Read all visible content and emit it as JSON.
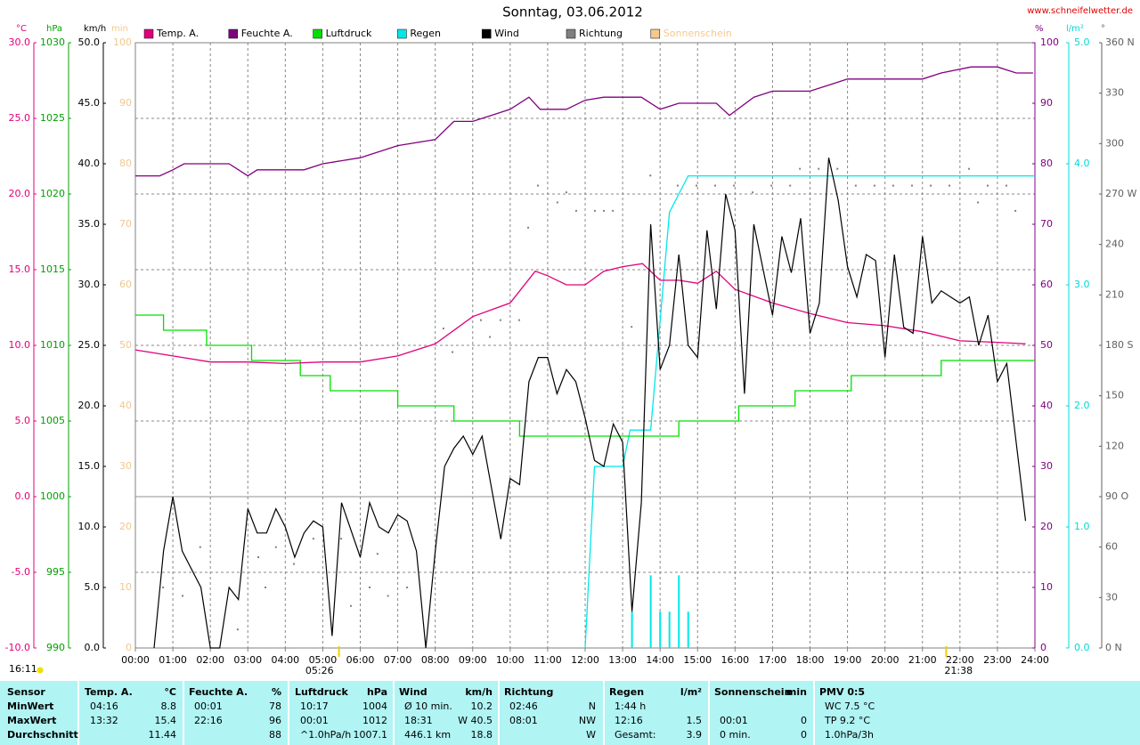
{
  "chart_data": {
    "type": "line",
    "title": "Sonntag, 03.06.2012",
    "source": "www.schneifelwetter.de",
    "xlim": [
      0,
      24
    ],
    "xticks": [
      {
        "value": 0,
        "label": "00:00"
      },
      {
        "value": 1,
        "label": "01:00"
      },
      {
        "value": 2,
        "label": "02:00"
      },
      {
        "value": 3,
        "label": "03:00"
      },
      {
        "value": 4,
        "label": "04:00"
      },
      {
        "value": 5,
        "label": "05:00"
      },
      {
        "value": 6,
        "label": "06:00"
      },
      {
        "value": 7,
        "label": "07:00"
      },
      {
        "value": 8,
        "label": "08:00"
      },
      {
        "value": 9,
        "label": "09:00"
      },
      {
        "value": 10,
        "label": "10:00"
      },
      {
        "value": 11,
        "label": "11:00"
      },
      {
        "value": 12,
        "label": "12:00"
      },
      {
        "value": 13,
        "label": "13:00"
      },
      {
        "value": 14,
        "label": "14:00"
      },
      {
        "value": 15,
        "label": "15:00"
      },
      {
        "value": 16,
        "label": "16:00"
      },
      {
        "value": 17,
        "label": "17:00"
      },
      {
        "value": 18,
        "label": "18:00"
      },
      {
        "value": 19,
        "label": "19:00"
      },
      {
        "value": 20,
        "label": "20:00"
      },
      {
        "value": 21,
        "label": "21:00"
      },
      {
        "value": 22,
        "label": "22:00"
      },
      {
        "value": 23,
        "label": "23:00"
      },
      {
        "value": 24,
        "label": "24:00"
      }
    ],
    "grid": true,
    "axes": [
      {
        "id": "temp",
        "unit": "°C",
        "color": "#e0007a",
        "lim": [
          -10,
          30
        ],
        "ticks": [
          {
            "value": -10,
            "label": "-10.0"
          },
          {
            "value": -5,
            "label": "-5.0"
          },
          {
            "value": 0,
            "label": "0.0"
          },
          {
            "value": 5,
            "label": "5.0"
          },
          {
            "value": 10,
            "label": "10.0"
          },
          {
            "value": 15,
            "label": "15.0"
          },
          {
            "value": 20,
            "label": "20.0"
          },
          {
            "value": 25,
            "label": "25.0"
          },
          {
            "value": 30,
            "label": "30.0"
          }
        ]
      },
      {
        "id": "pressure",
        "unit": "hPa",
        "color": "#00a000",
        "lim": [
          990,
          1030
        ],
        "ticks": [
          990,
          995,
          1000,
          1005,
          1010,
          1015,
          1020,
          1025,
          1030
        ]
      },
      {
        "id": "wind",
        "unit": "km/h",
        "color": "#000000",
        "lim": [
          0,
          50
        ],
        "ticks": [
          {
            "value": 0,
            "label": "0.0"
          },
          {
            "value": 5,
            "label": "5.0"
          },
          {
            "value": 10,
            "label": "10.0"
          },
          {
            "value": 15,
            "label": "15.0"
          },
          {
            "value": 20,
            "label": "20.0"
          },
          {
            "value": 25,
            "label": "25.0"
          },
          {
            "value": 30,
            "label": "30.0"
          },
          {
            "value": 35,
            "label": "35.0"
          },
          {
            "value": 40,
            "label": "40.0"
          },
          {
            "value": 45,
            "label": "45.0"
          },
          {
            "value": 50,
            "label": "50.0"
          }
        ]
      },
      {
        "id": "sunshine",
        "unit": "min",
        "color": "#f0c890",
        "lim": [
          0,
          100
        ],
        "ticks": [
          0,
          10,
          20,
          30,
          40,
          50,
          60,
          70,
          80,
          90,
          100
        ]
      },
      {
        "id": "humidity",
        "unit": "%",
        "color": "#800080",
        "lim": [
          0,
          100
        ],
        "ticks": [
          0,
          10,
          20,
          30,
          40,
          50,
          60,
          70,
          80,
          90,
          100
        ]
      },
      {
        "id": "rain",
        "unit": "l/m²",
        "color": "#00d8d8",
        "lim": [
          0,
          5
        ],
        "ticks": [
          {
            "value": 0,
            "label": "0.0"
          },
          {
            "value": 1,
            "label": "1.0"
          },
          {
            "value": 2,
            "label": "2.0"
          },
          {
            "value": 3,
            "label": "3.0"
          },
          {
            "value": 4,
            "label": "4.0"
          },
          {
            "value": 5,
            "label": "5.0"
          }
        ]
      },
      {
        "id": "direction",
        "unit": "°",
        "color": "#606060",
        "lim": [
          0,
          360
        ],
        "ticks": [
          {
            "value": 0,
            "label": "0 N"
          },
          30,
          60,
          {
            "value": 90,
            "label": "90 O"
          },
          120,
          150,
          {
            "value": 180,
            "label": "180 S"
          },
          210,
          240,
          {
            "value": 270,
            "label": "270 W"
          },
          300,
          330,
          {
            "value": 360,
            "label": "360 N"
          }
        ]
      }
    ],
    "series": [
      {
        "name": "Temp. A.",
        "axis": "temp",
        "color": "#e0007a",
        "x": [
          0,
          1,
          2,
          3,
          4,
          5,
          6,
          7,
          8,
          9,
          10,
          10.67,
          11,
          11.5,
          12,
          12.5,
          13,
          13.53,
          14,
          14.5,
          15,
          15.5,
          16,
          17,
          18,
          19,
          20,
          21,
          22,
          23,
          23.75
        ],
        "values": [
          9.7,
          9.3,
          8.9,
          8.9,
          8.8,
          8.9,
          8.9,
          9.3,
          10.1,
          11.9,
          12.8,
          14.9,
          14.6,
          14.0,
          14.0,
          14.9,
          15.2,
          15.4,
          14.3,
          14.3,
          14.1,
          14.9,
          13.7,
          12.8,
          12.1,
          11.5,
          11.3,
          10.9,
          10.3,
          10.2,
          10.1
        ]
      },
      {
        "name": "Feuchte A.",
        "axis": "humidity",
        "color": "#800080",
        "x": [
          0,
          0.65,
          1,
          1.3,
          2.5,
          3,
          3.25,
          3.5,
          4.5,
          5,
          6,
          7,
          8,
          8.5,
          9,
          9.5,
          10,
          10.5,
          10.8,
          11.5,
          12,
          12.5,
          13.5,
          14,
          14.5,
          15.5,
          15.85,
          16.5,
          17,
          18,
          18.5,
          19,
          21,
          21.5,
          22.3,
          23,
          23.5,
          23.95
        ],
        "values": [
          78,
          78,
          79,
          80,
          80,
          78,
          79,
          79,
          79,
          80,
          81,
          83,
          84,
          87,
          87,
          88,
          89,
          91,
          89,
          89,
          90.5,
          91,
          91,
          89,
          90,
          90,
          88,
          91,
          92,
          92,
          93,
          94,
          94,
          95,
          96,
          96,
          95,
          95
        ]
      },
      {
        "name": "Luftdruck",
        "axis": "pressure",
        "color": "#00e000",
        "x": [
          0,
          0.75,
          0.75,
          1.9,
          1.9,
          3.1,
          3.1,
          4.4,
          4.4,
          5.2,
          5.2,
          7.0,
          7.0,
          8.5,
          8.5,
          10.25,
          10.25,
          14.5,
          14.5,
          16.1,
          16.1,
          17.6,
          17.6,
          19.1,
          19.1,
          21.5,
          21.5,
          24
        ],
        "values": [
          1012,
          1012,
          1011,
          1011,
          1010,
          1010,
          1009,
          1009,
          1008,
          1008,
          1007,
          1007,
          1006,
          1006,
          1005,
          1005,
          1004,
          1004,
          1005,
          1005,
          1006,
          1006,
          1007,
          1007,
          1008,
          1008,
          1009,
          1009
        ]
      },
      {
        "name": "Regen",
        "axis": "rain",
        "color": "#00e8e8",
        "x": [
          12.0,
          12.25,
          13.0,
          13.2,
          13.75,
          14.25,
          14.75,
          24
        ],
        "values": [
          0,
          1.5,
          1.5,
          1.8,
          1.8,
          3.6,
          3.9,
          3.9
        ],
        "bar_x": [
          13.25,
          13.75,
          14.0,
          14.25,
          14.5,
          14.75
        ],
        "bar_values": [
          0.3,
          0.6,
          0.3,
          0.3,
          0.6,
          0.3
        ]
      },
      {
        "name": "Wind",
        "axis": "wind",
        "color": "#000000",
        "x": [
          0.5,
          0.75,
          1,
          1.25,
          1.75,
          2,
          2.25,
          2.5,
          2.75,
          3,
          3.25,
          3.5,
          3.75,
          4,
          4.25,
          4.5,
          4.75,
          5,
          5.25,
          5.5,
          6,
          6.25,
          6.5,
          6.75,
          7,
          7.25,
          7.5,
          7.75,
          8,
          8.25,
          8.5,
          8.75,
          9,
          9.25,
          9.75,
          10,
          10.25,
          10.5,
          10.75,
          11,
          11.25,
          11.5,
          11.75,
          12,
          12.25,
          12.5,
          12.75,
          13,
          13.25,
          13.5,
          13.75,
          14,
          14.25,
          14.5,
          14.75,
          15,
          15.25,
          15.5,
          15.75,
          16,
          16.25,
          16.5,
          17,
          17.25,
          17.5,
          17.75,
          18,
          18.25,
          18.5,
          18.75,
          19,
          19.25,
          19.5,
          19.75,
          20,
          20.25,
          20.5,
          20.75,
          21,
          21.25,
          21.5,
          21.75,
          22,
          22.25,
          22.5,
          22.75,
          23,
          23.25,
          23.75
        ],
        "values": [
          0,
          8,
          12.5,
          8,
          5,
          0,
          0,
          5,
          4,
          11.5,
          9.5,
          9.5,
          11.5,
          10,
          7.5,
          9.5,
          10.5,
          10,
          1,
          12,
          7.5,
          12,
          10,
          9.5,
          11,
          10.5,
          8,
          0,
          8,
          15,
          16.5,
          17.5,
          16,
          17.5,
          9,
          14,
          13.5,
          22,
          24,
          24,
          21,
          23,
          22,
          19,
          15.5,
          15,
          18.5,
          17,
          3,
          12,
          35,
          23,
          25,
          32.5,
          25,
          24,
          34.5,
          28,
          37.5,
          34.5,
          21,
          35,
          27.5,
          34,
          31,
          35.5,
          26,
          28.5,
          40.5,
          37,
          31.5,
          29,
          32.5,
          32,
          24,
          32.5,
          26.5,
          26,
          34,
          28.5,
          29.5,
          29,
          28.5,
          29,
          25,
          27.5,
          22,
          23.5,
          10.5
        ]
      },
      {
        "name": "Richtung",
        "axis": "direction",
        "color": "#808080",
        "style": "dots",
        "x": [
          0.74,
          1.26,
          1.73,
          2.73,
          3.28,
          3.47,
          3.75,
          4.23,
          4.75,
          5.49,
          5.75,
          6.25,
          6.46,
          6.74,
          7.25,
          8.22,
          8.46,
          9.22,
          9.46,
          9.74,
          10.24,
          10.48,
          10.74,
          11.26,
          11.5,
          11.76,
          12.26,
          12.5,
          12.74,
          13.24,
          13.74,
          14.47,
          14.97,
          15.47,
          15.97,
          16.47,
          16.97,
          17.47,
          17.73,
          18.23,
          18.73,
          19.22,
          19.72,
          20.22,
          20.72,
          21.22,
          21.72,
          22.24,
          22.48,
          22.74,
          23.24,
          23.48
        ],
        "values": [
          36,
          31,
          60,
          11,
          54,
          36,
          60,
          50,
          65,
          65,
          25,
          36,
          56,
          31,
          36,
          190,
          176,
          195,
          185,
          195,
          195,
          250,
          275,
          265,
          271,
          260,
          260,
          260,
          260,
          191,
          281,
          275,
          275,
          275,
          275,
          271,
          275,
          275,
          285,
          285,
          285,
          275,
          275,
          275,
          275,
          275,
          275,
          285,
          265,
          275,
          275,
          260
        ]
      },
      {
        "name": "Sonnenschein",
        "axis": "sunshine",
        "color": "#f8c888",
        "x": [],
        "values": []
      }
    ],
    "annotations": {
      "day_length": "16:11",
      "sunrise": {
        "value": 5.433,
        "label": "05:26"
      },
      "sunset": {
        "value": 21.633,
        "label": "21:38"
      }
    }
  },
  "table": {
    "groups": [
      {
        "title": "Sensor",
        "rows": [
          {
            "time": "MinWert"
          },
          {
            "time": "MaxWert"
          },
          {
            "time": "Durchschnitt"
          }
        ]
      },
      {
        "title": "Temp. A.",
        "unit": "°C",
        "rows": [
          {
            "time": "04:16",
            "value": "8.8"
          },
          {
            "time": "13:32",
            "value": "15.4"
          },
          {
            "value": "11.44"
          }
        ]
      },
      {
        "title": "Feuchte A.",
        "unit": "%",
        "rows": [
          {
            "time": "00:01",
            "value": "78"
          },
          {
            "time": "22:16",
            "value": "96"
          },
          {
            "value": "88"
          }
        ]
      },
      {
        "title": "Luftdruck",
        "unit": "hPa",
        "rows": [
          {
            "time": "10:17",
            "value": "1004"
          },
          {
            "time": "00:01",
            "value": "1012"
          },
          {
            "time": "^1.0hPa/h",
            "value": "1007.1"
          }
        ]
      },
      {
        "title": "Wind",
        "unit": "km/h",
        "rows": [
          {
            "time": "Ø 10 min.",
            "value": "10.2"
          },
          {
            "time": "18:31",
            "value": "W 40.5"
          },
          {
            "time": "446.1 km",
            "value": "18.8"
          }
        ]
      },
      {
        "title": "Richtung",
        "rows": [
          {
            "time": "02:46",
            "value": "N"
          },
          {
            "time": "08:01",
            "value": "NW"
          },
          {
            "value": "W"
          }
        ]
      },
      {
        "title": "Regen",
        "unit": "l/m²",
        "rows": [
          {
            "time": "1:44 h"
          },
          {
            "time": "12:16",
            "value": "1.5"
          },
          {
            "time": "Gesamt:",
            "value": "3.9"
          }
        ]
      },
      {
        "title": "Sonnenschein",
        "unit": "min",
        "rows": [
          {},
          {
            "time": "00:01",
            "value": "0"
          },
          {
            "time": "0 min.",
            "value": "0"
          }
        ]
      },
      {
        "title": "PMV 0:5",
        "rows": [
          {
            "time": "WC 7.5 °C"
          },
          {
            "time": "TP 9.2 °C"
          },
          {
            "time": "1.0hPa/3h"
          }
        ]
      }
    ]
  }
}
